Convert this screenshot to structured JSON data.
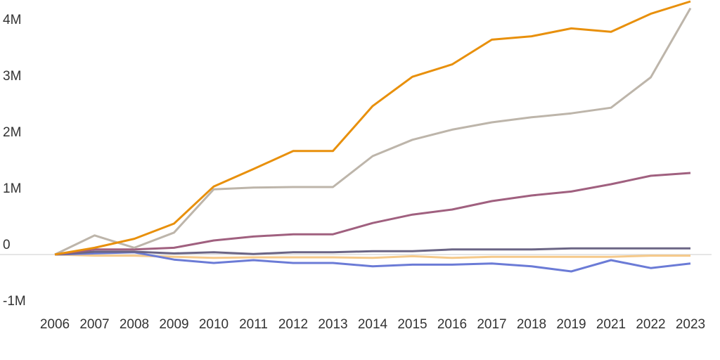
{
  "chart_data": {
    "type": "line",
    "categories": [
      "2006",
      "2007",
      "2008",
      "2009",
      "2010",
      "2011",
      "2012",
      "2013",
      "2014",
      "2015",
      "2016",
      "2017",
      "2018",
      "2019",
      "2021",
      "2022",
      "2023"
    ],
    "series": [
      {
        "color": "#e8900c",
        "values": [
          0,
          120000,
          280000,
          550000,
          1210000,
          1520000,
          1840000,
          1840000,
          2640000,
          3160000,
          3380000,
          3820000,
          3880000,
          4020000,
          3960000,
          4280000,
          4500000
        ]
      },
      {
        "color": "#bdb5aa",
        "values": [
          0,
          340000,
          120000,
          390000,
          1160000,
          1190000,
          1200000,
          1200000,
          1750000,
          2040000,
          2220000,
          2350000,
          2440000,
          2510000,
          2610000,
          3150000,
          4380000
        ]
      },
      {
        "color": "#a0607f",
        "values": [
          0,
          90000,
          90000,
          120000,
          250000,
          320000,
          360000,
          360000,
          560000,
          710000,
          800000,
          950000,
          1050000,
          1120000,
          1250000,
          1400000,
          1450000
        ]
      },
      {
        "color": "#6b6585",
        "values": [
          0,
          50000,
          50000,
          20000,
          40000,
          10000,
          40000,
          40000,
          60000,
          60000,
          90000,
          90000,
          90000,
          110000,
          110000,
          110000,
          110000
        ]
      },
      {
        "color": "#6b7bd6",
        "values": [
          0,
          20000,
          40000,
          -90000,
          -150000,
          -100000,
          -150000,
          -150000,
          -210000,
          -180000,
          -180000,
          -160000,
          -210000,
          -300000,
          -100000,
          -240000,
          -160000
        ]
      },
      {
        "color": "#f5c98a",
        "values": [
          0,
          -20000,
          -20000,
          -40000,
          -60000,
          -50000,
          -50000,
          -50000,
          -60000,
          -30000,
          -60000,
          -40000,
          -40000,
          -40000,
          -40000,
          -20000,
          -20000
        ]
      }
    ],
    "ylim": [
      -1100000,
      4500000
    ],
    "yticks": [
      {
        "value": -1000000,
        "label": "-1M"
      },
      0,
      {
        "value": 1000000,
        "label": "1M"
      },
      {
        "value": 2000000,
        "label": "2M"
      },
      {
        "value": 3000000,
        "label": "3M"
      },
      {
        "value": 4000000,
        "label": "4M"
      }
    ],
    "grid": false
  }
}
